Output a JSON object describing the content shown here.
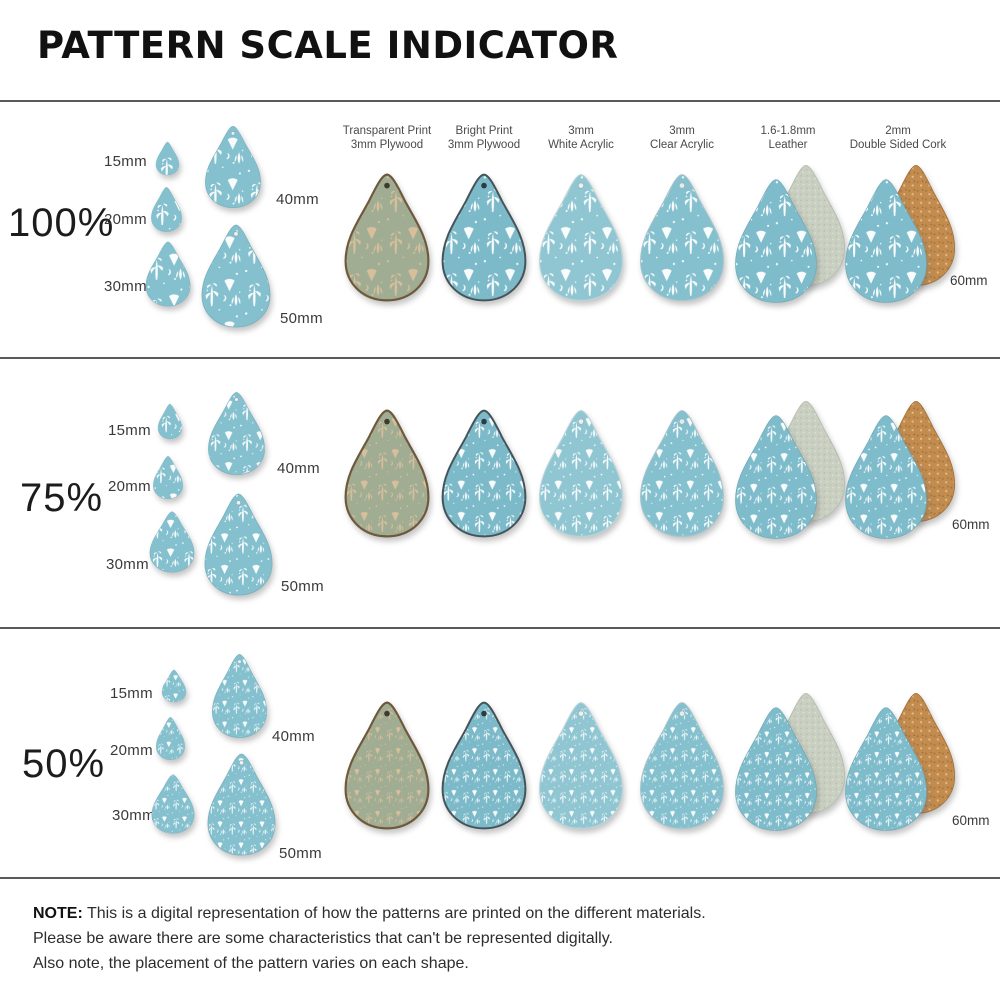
{
  "title": "PATTERN SCALE INDICATOR",
  "materials": [
    {
      "line1": "Transparent Print",
      "line2": "3mm Plywood"
    },
    {
      "line1": "Bright Print",
      "line2": "3mm Plywood"
    },
    {
      "line1": "3mm",
      "line2": "White Acrylic"
    },
    {
      "line1": "3mm",
      "line2": "Clear Acrylic"
    },
    {
      "line1": "1.6-1.8mm",
      "line2": "Leather"
    },
    {
      "line1": "2mm",
      "line2": "Double Sided Cork"
    }
  ],
  "size_labels": {
    "s15": "15mm",
    "s20": "20mm",
    "s30": "30mm",
    "s40": "40mm",
    "s50": "50mm",
    "s60": "60mm"
  },
  "sections": [
    {
      "percent": "100%"
    },
    {
      "percent": "75%"
    },
    {
      "percent": "50%"
    }
  ],
  "note": {
    "label": "NOTE:",
    "line1": "This is a digital representation of how the patterns are printed on the different materials.",
    "line2": "Please be aware there are some characteristics that can't be represented digitally.",
    "line3": "Also note, the placement of the pattern varies on each shape."
  },
  "colors": {
    "pattern_blue": "#84c0ce",
    "pattern_white": "#ffffff",
    "plywood_base": "#a0ad93",
    "plywood_print_tan": "#dcc09d",
    "leather_back": "#c9cfc1",
    "cork_back": "#c28c4f"
  }
}
